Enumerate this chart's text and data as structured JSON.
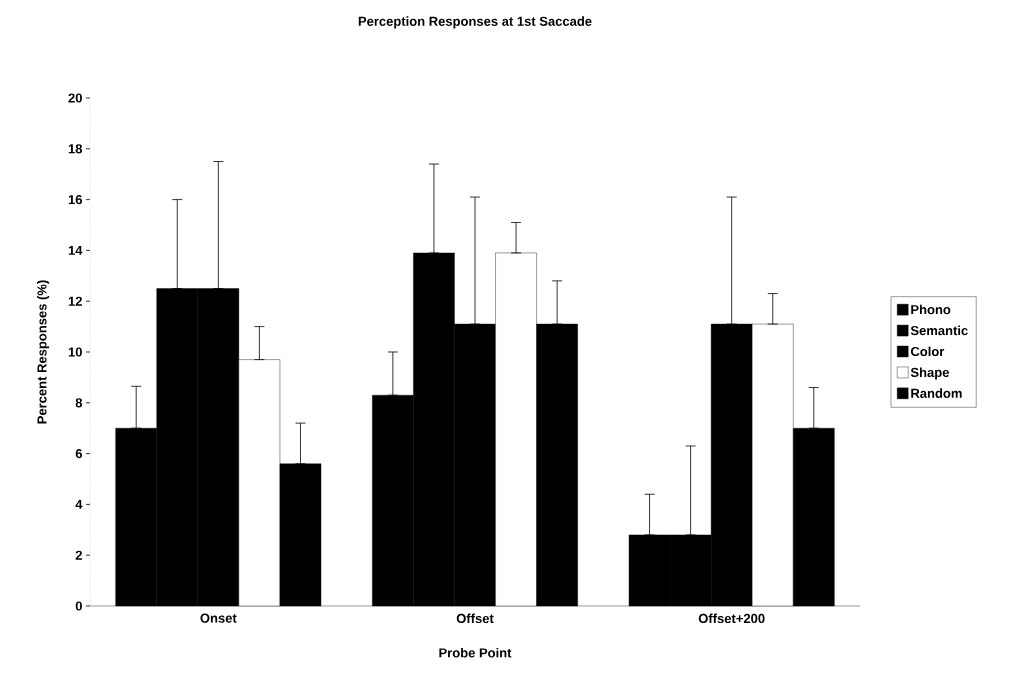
{
  "chart_data": {
    "type": "bar",
    "title": "Perception Responses at 1st Saccade",
    "xlabel": "Probe Point",
    "ylabel": "Percent Responses (%)",
    "categories": [
      "Onset",
      "Offset",
      "Offset+200"
    ],
    "series": [
      {
        "name": "Phono",
        "color": "#000000",
        "values": [
          7.0,
          8.3,
          2.8
        ],
        "errors": [
          [
            7.0,
            8.65
          ],
          [
            8.3,
            10.0
          ],
          [
            2.8,
            4.4
          ]
        ]
      },
      {
        "name": "Semantic",
        "color": "#000000",
        "values": [
          12.5,
          13.9,
          2.8
        ],
        "errors": [
          [
            12.5,
            16.0
          ],
          [
            13.9,
            17.4
          ],
          [
            2.8,
            6.3
          ]
        ]
      },
      {
        "name": "Color",
        "color": "#000000",
        "values": [
          12.5,
          11.1,
          11.1
        ],
        "errors": [
          [
            12.5,
            17.5
          ],
          [
            11.1,
            16.1
          ],
          [
            11.1,
            16.1
          ]
        ]
      },
      {
        "name": "Shape",
        "color": "#ffffff",
        "values": [
          9.7,
          13.9,
          11.1
        ],
        "errors": [
          [
            9.7,
            11.0
          ],
          [
            13.9,
            15.1
          ],
          [
            11.1,
            12.3
          ]
        ]
      },
      {
        "name": "Random",
        "color": "#000000",
        "values": [
          5.6,
          11.1,
          7.0
        ],
        "errors": [
          [
            5.6,
            7.2
          ],
          [
            11.1,
            12.8
          ],
          [
            7.0,
            8.6
          ]
        ]
      }
    ],
    "ylim": [
      0,
      20
    ],
    "yticks": [
      0,
      2,
      4,
      6,
      8,
      10,
      12,
      14,
      16,
      18,
      20
    ],
    "legend": "right"
  }
}
